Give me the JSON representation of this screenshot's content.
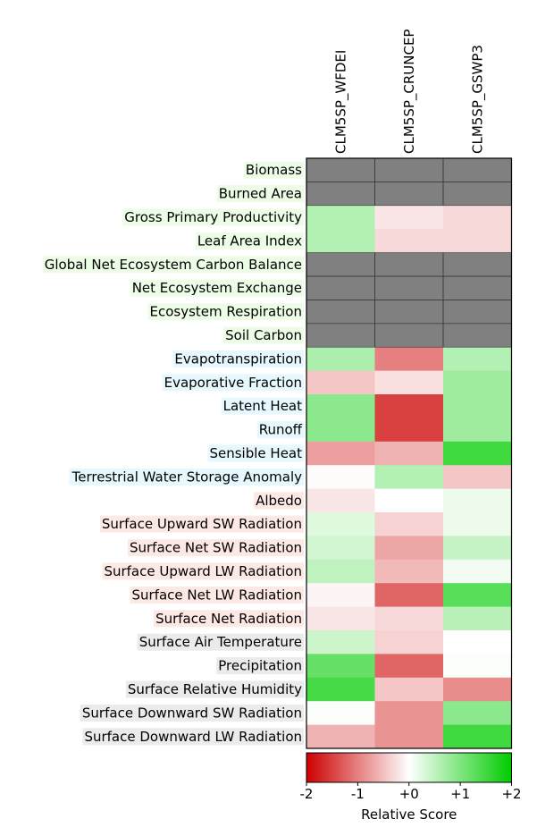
{
  "chart_data": {
    "type": "heatmap",
    "title": "",
    "columns": [
      "CLM5SP_WFDEI",
      "CLM5SP_CRUNCEP",
      "CLM5SP_GSWP3"
    ],
    "rows": [
      "Biomass",
      "Burned Area",
      "Gross Primary Productivity",
      "Leaf Area Index",
      "Global Net Ecosystem Carbon Balance",
      "Net Ecosystem Exchange",
      "Ecosystem Respiration",
      "Soil Carbon",
      "Evapotranspiration",
      "Evaporative Fraction",
      "Latent Heat",
      "Runoff",
      "Sensible Heat",
      "Terrestrial Water Storage Anomaly",
      "Albedo",
      "Surface Upward SW Radiation",
      "Surface Net SW Radiation",
      "Surface Upward LW Radiation",
      "Surface Net LW Radiation",
      "Surface Net Radiation",
      "Surface Air Temperature",
      "Precipitation",
      "Surface Relative Humidity",
      "Surface Downward SW Radiation",
      "Surface Downward LW Radiation"
    ],
    "row_label_colors": [
      "#ecfce6",
      "#ecfce6",
      "#ecfce6",
      "#ecfce6",
      "#ecfce6",
      "#ecfce6",
      "#ecfce6",
      "#ecfce6",
      "#e6f8fe",
      "#e6f8fe",
      "#e6f8fe",
      "#e6f8fe",
      "#e6f8fe",
      "#e6f8fe",
      "#fde9e4",
      "#fde9e4",
      "#fde9e4",
      "#fde9e4",
      "#fde9e4",
      "#fde9e4",
      "#ebebeb",
      "#ebebeb",
      "#ebebeb",
      "#ebebeb",
      "#ebebeb"
    ],
    "values": [
      [
        null,
        null,
        null
      ],
      [
        null,
        null,
        null
      ],
      [
        0.6,
        -0.2,
        -0.3
      ],
      [
        0.6,
        -0.3,
        -0.3
      ],
      [
        null,
        null,
        null
      ],
      [
        null,
        null,
        null
      ],
      [
        null,
        null,
        null
      ],
      [
        null,
        null,
        null
      ],
      [
        0.65,
        -1.0,
        0.6
      ],
      [
        -0.45,
        -0.25,
        0.75
      ],
      [
        0.9,
        -1.5,
        0.75
      ],
      [
        0.9,
        -1.5,
        0.75
      ],
      [
        -0.75,
        -0.6,
        1.5
      ],
      [
        -0.03,
        0.6,
        -0.45
      ],
      [
        -0.2,
        0.0,
        0.15
      ],
      [
        0.25,
        -0.35,
        0.15
      ],
      [
        0.35,
        -0.7,
        0.45
      ],
      [
        0.5,
        -0.55,
        0.1
      ],
      [
        -0.08,
        -1.2,
        1.3
      ],
      [
        -0.2,
        -0.3,
        0.55
      ],
      [
        0.4,
        -0.35,
        0.0
      ],
      [
        1.2,
        -1.2,
        0.02
      ],
      [
        1.45,
        -0.45,
        -0.9
      ],
      [
        0.02,
        -0.85,
        0.9
      ],
      [
        -0.6,
        -0.85,
        1.5
      ]
    ],
    "missing_color": "#808080",
    "colorbar": {
      "min": -2,
      "max": 2,
      "ticks": [
        "-2",
        "-1",
        "+0",
        "+1",
        "+2"
      ],
      "label": "Relative Score",
      "stops": [
        "#cc0000",
        "#ffffff",
        "#00cc00"
      ]
    }
  }
}
